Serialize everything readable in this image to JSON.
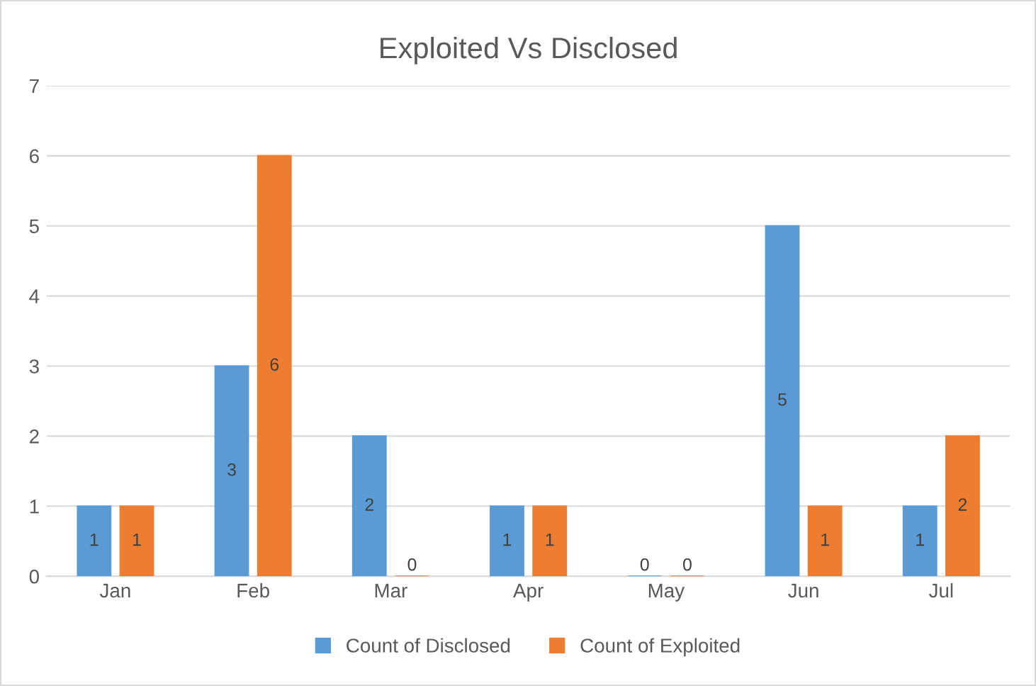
{
  "chart_data": {
    "type": "bar",
    "title": "Exploited Vs Disclosed",
    "categories": [
      "Jan",
      "Feb",
      "Mar",
      "Apr",
      "May",
      "Jun",
      "Jul"
    ],
    "series": [
      {
        "name": "Count of Disclosed",
        "color": "#5b9bd5",
        "values": [
          1,
          3,
          2,
          1,
          0,
          5,
          1
        ]
      },
      {
        "name": "Count of Exploited",
        "color": "#ed7d31",
        "values": [
          1,
          6,
          0,
          1,
          0,
          1,
          2
        ]
      }
    ],
    "ylim": [
      0,
      7
    ],
    "yticks": [
      0,
      1,
      2,
      3,
      4,
      5,
      6,
      7
    ],
    "grid": "y",
    "legend": "bottom",
    "data_labels": true
  }
}
